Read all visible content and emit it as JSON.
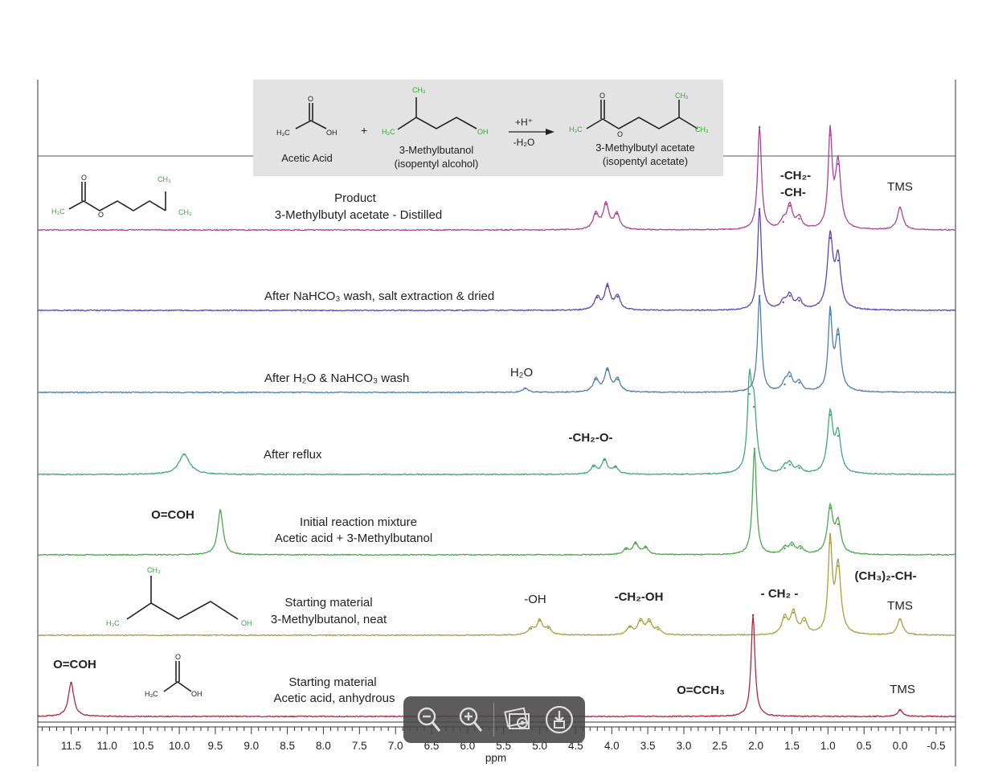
{
  "reaction": {
    "reactant1": "Acetic Acid",
    "reactant2_line1": "3-Methylbutanol",
    "reactant2_line2": "(isopentyl alcohol)",
    "product_line1": "3-Methylbutyl acetate",
    "product_line2": "(isopentyl acetate)",
    "plus": "+",
    "cond_top": "+H⁺",
    "cond_bottom": "-H₂O"
  },
  "structure_text": {
    "h3c": "H₃C",
    "ch3": "CH₃",
    "oh": "OH",
    "o": "O"
  },
  "spectra_labels": {
    "product_l1": "Product",
    "product_l2": "3-Methylbutyl acetate - Distilled",
    "nahco3": "After NaHCO₃ wash, salt extraction & dried",
    "h2o_wash": "After H₂O & NaHCO₃ wash",
    "reflux": "After reflux",
    "initial_l1": "Initial reaction mixture",
    "initial_l2": "Acetic acid + 3-Methylbutanol",
    "sm1_l1": "Starting material",
    "sm1_l2": "3-Methylbutanol, neat",
    "sm2_l1": "Starting material",
    "sm2_l2": "Acetic acid, anhydrous"
  },
  "peak_labels": {
    "ch2_top": "-CH₂-",
    "ch_top": "-CH-",
    "tms1": "TMS",
    "h2o": "H₂O",
    "ch2o": "-CH₂-O-",
    "ocoh1": "O=COH",
    "oh": "-OH",
    "ch2oh": "-CH₂-OH",
    "ch2_mid": "- CH₂ -",
    "ch3ch": "(CH₃)₂-CH-",
    "tms2": "TMS",
    "ocoh2": "O=COH",
    "occh3": "O=CCH₃",
    "tms3": "TMS"
  },
  "colors": {
    "product": "#b0409b",
    "nahco3": "#5f45b5",
    "h2o_wash": "#4a7fb0",
    "reflux": "#3fa878",
    "initial": "#4da84d",
    "sm_butanol": "#a8a040",
    "sm_acetic": "#b0283a",
    "scheme_bg": "#e3e3e3"
  },
  "chart_data": {
    "type": "line",
    "xlabel": "ppm",
    "xlim": [
      11.9,
      -0.75
    ],
    "x_reversed": true,
    "x_ticks": [
      "11.5",
      "11.0",
      "10.5",
      "10.0",
      "9.5",
      "9.0",
      "8.5",
      "8.0",
      "7.5",
      "7.0",
      "6.5",
      "6.0",
      "5.5",
      "5.0",
      "4.5",
      "4.0",
      "3.5",
      "3.0",
      "2.5",
      "2.0",
      "1.5",
      "1.0",
      "0.5",
      "0.0",
      "-0.5"
    ],
    "series": [
      {
        "name": "Product 3-Methylbutyl acetate - Distilled",
        "peaks": [
          [
            4.22,
            20
          ],
          [
            4.08,
            32
          ],
          [
            3.93,
            20
          ],
          [
            1.95,
            128
          ],
          [
            1.62,
            10
          ],
          [
            1.53,
            30
          ],
          [
            1.4,
            14
          ],
          [
            0.97,
            118
          ],
          [
            0.86,
            82
          ],
          [
            0.0,
            28
          ]
        ]
      },
      {
        "name": "After NaHCO₃ wash, salt extraction & dried",
        "peaks": [
          [
            4.2,
            16
          ],
          [
            4.06,
            30
          ],
          [
            3.92,
            17
          ],
          [
            1.95,
            126
          ],
          [
            1.62,
            10
          ],
          [
            1.53,
            18
          ],
          [
            1.4,
            12
          ],
          [
            0.97,
            90
          ],
          [
            0.86,
            62
          ]
        ]
      },
      {
        "name": "After H₂O & NaHCO₃ wash",
        "peaks": [
          [
            5.2,
            5
          ],
          [
            4.22,
            16
          ],
          [
            4.06,
            28
          ],
          [
            3.92,
            16
          ],
          [
            1.95,
            120
          ],
          [
            1.6,
            10
          ],
          [
            1.53,
            20
          ],
          [
            1.4,
            12
          ],
          [
            0.97,
            97
          ],
          [
            0.86,
            72
          ]
        ]
      },
      {
        "name": "After reflux",
        "peaks": [
          [
            9.93,
            25
          ],
          [
            4.25,
            10
          ],
          [
            4.1,
            18
          ],
          [
            3.95,
            9
          ],
          [
            2.09,
            100
          ],
          [
            2.03,
            84
          ],
          [
            1.6,
            8
          ],
          [
            1.53,
            12
          ],
          [
            1.4,
            8
          ],
          [
            0.97,
            74
          ],
          [
            0.86,
            48
          ]
        ]
      },
      {
        "name": "Initial reaction mixture Acetic acid + 3-Methylbutanol",
        "peaks": [
          [
            9.43,
            55
          ],
          [
            3.8,
            7
          ],
          [
            3.67,
            14
          ],
          [
            3.53,
            9
          ],
          [
            2.02,
            132
          ],
          [
            1.6,
            8
          ],
          [
            1.5,
            12
          ],
          [
            1.38,
            8
          ],
          [
            0.97,
            58
          ],
          [
            0.86,
            38
          ]
        ]
      },
      {
        "name": "Starting material 3-Methylbutanol, neat",
        "peaks": [
          [
            5.12,
            8
          ],
          [
            5.0,
            18
          ],
          [
            4.88,
            9
          ],
          [
            3.75,
            10
          ],
          [
            3.6,
            18
          ],
          [
            3.48,
            17
          ],
          [
            3.36,
            7
          ],
          [
            1.6,
            22
          ],
          [
            1.48,
            28
          ],
          [
            1.33,
            18
          ],
          [
            0.97,
            115
          ],
          [
            0.86,
            86
          ],
          [
            0.0,
            20
          ]
        ]
      },
      {
        "name": "Starting material Acetic acid, anhydrous",
        "peaks": [
          [
            11.5,
            42
          ],
          [
            2.04,
            126
          ],
          [
            0.0,
            8
          ]
        ]
      }
    ]
  },
  "toolbar": {
    "zoom_out": "zoom-out",
    "zoom_in": "zoom-in",
    "image_view": "image-view",
    "download": "download"
  }
}
